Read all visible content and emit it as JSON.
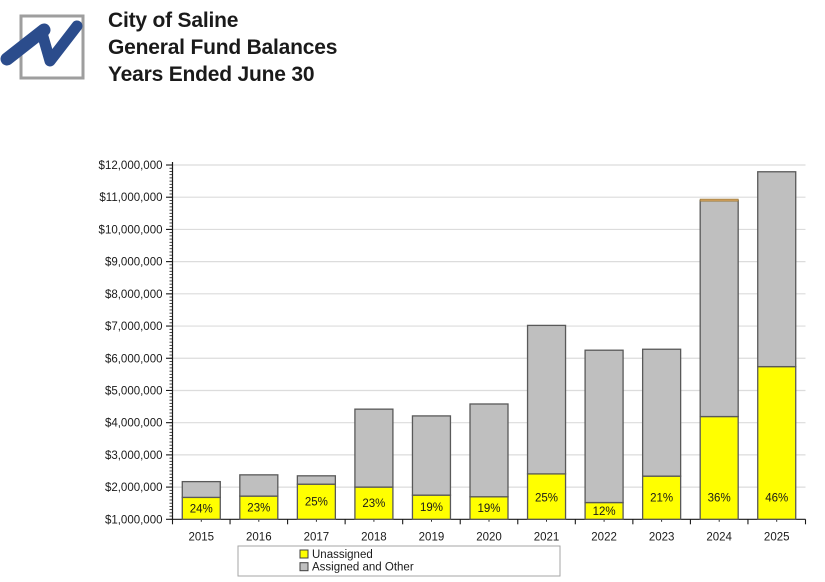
{
  "header": {
    "title_lines": [
      "City of Saline",
      "General Fund Balances",
      "Years Ended June 30"
    ],
    "logo": {
      "description": "blue swoosh N monogram inside gray square",
      "swoosh_color": "#2B4C8C",
      "border_color": "#9E9E9E"
    }
  },
  "chart_data": {
    "type": "bar",
    "stacked": true,
    "title": "",
    "categories": [
      "2015",
      "2016",
      "2017",
      "2018",
      "2019",
      "2020",
      "2021",
      "2022",
      "2023",
      "2024",
      "2025"
    ],
    "series": [
      {
        "name": "Unassigned",
        "color": "#FFFF00",
        "values": [
          1680000,
          1720000,
          2090000,
          2000000,
          1750000,
          1700000,
          2410000,
          1520000,
          2340000,
          4190000,
          5740000
        ]
      },
      {
        "name": "Assigned and Other",
        "color": "#BFBFBF",
        "values": [
          490000,
          660000,
          260000,
          2420000,
          2460000,
          2880000,
          4610000,
          4730000,
          3940000,
          6710000,
          6050000
        ]
      },
      {
        "name": "",
        "color": "#D8A561",
        "values": [
          0,
          0,
          0,
          0,
          0,
          0,
          0,
          0,
          0,
          40000,
          0
        ],
        "note": "thin tan segment visible at top of 2024 bar only; no legend entry"
      }
    ],
    "totals": [
      2170000,
      2380000,
      2350000,
      4420000,
      4210000,
      4580000,
      7020000,
      6250000,
      6280000,
      10940000,
      11790000
    ],
    "percent_labels": [
      "24%",
      "23%",
      "25%",
      "23%",
      "19%",
      "19%",
      "25%",
      "12%",
      "21%",
      "36%",
      "46%"
    ],
    "y_axis": {
      "min": 1000000,
      "max": 12000000,
      "major_step": 1000000,
      "minor_step": 100000,
      "tick_labels": [
        "$1,000,000",
        "$2,000,000",
        "$3,000,000",
        "$4,000,000",
        "$5,000,000",
        "$6,000,000",
        "$7,000,000",
        "$8,000,000",
        "$9,000,000",
        "$10,000,000",
        "$11,000,000",
        "$12,000,000"
      ]
    },
    "legend": {
      "position": "bottom",
      "entries": [
        {
          "label": "Unassigned",
          "color": "#FFFF00"
        },
        {
          "label": "Assigned and Other",
          "color": "#BFBFBF"
        }
      ]
    },
    "gridlines": "horizontal major only",
    "colors": {
      "axis": "#1A1A1A",
      "gridline": "#DCDCDC",
      "bar_border": "#595959",
      "label_text": "#1A1A1A",
      "legend_border": "#A6A6A6"
    }
  }
}
